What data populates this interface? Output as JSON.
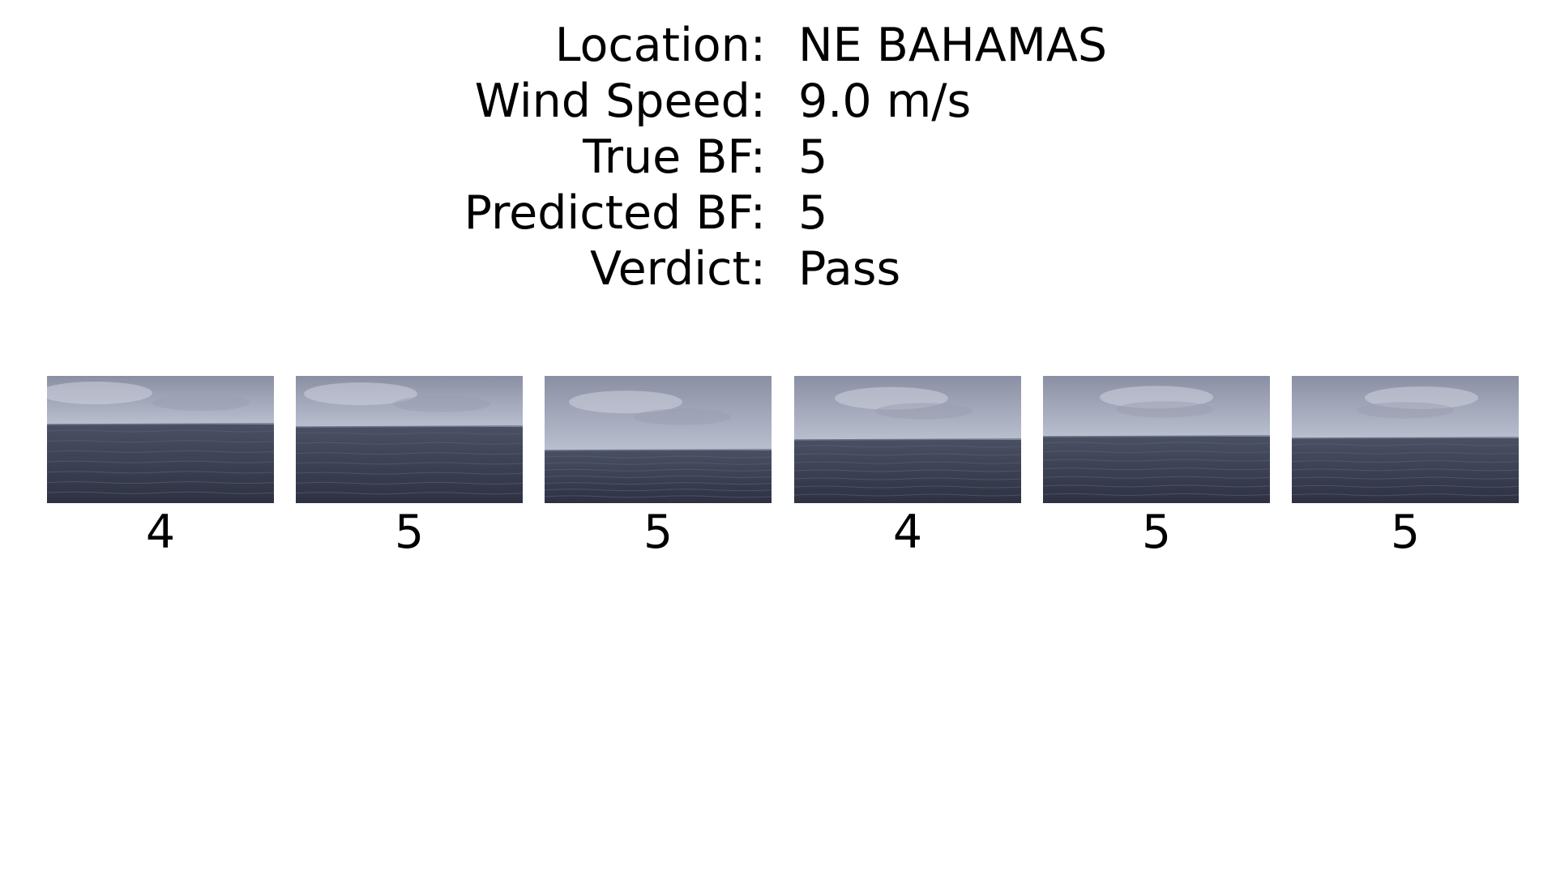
{
  "info": [
    {
      "label": "Location:",
      "value": "NE BAHAMAS"
    },
    {
      "label": "Wind Speed:",
      "value": "9.0 m/s"
    },
    {
      "label": "True BF:",
      "value": "5"
    },
    {
      "label": "Predicted BF:",
      "value": "5"
    },
    {
      "label": "Verdict:",
      "value": "Pass"
    }
  ],
  "frames": [
    {
      "label": "4"
    },
    {
      "label": "5"
    },
    {
      "label": "5"
    },
    {
      "label": "4"
    },
    {
      "label": "5"
    },
    {
      "label": "5"
    }
  ],
  "colors": {
    "sky_light": "#b9bfcf",
    "sky_dark": "#8b8fa3",
    "sea_top": "#4a5063",
    "sea_bottom": "#2d3142"
  }
}
